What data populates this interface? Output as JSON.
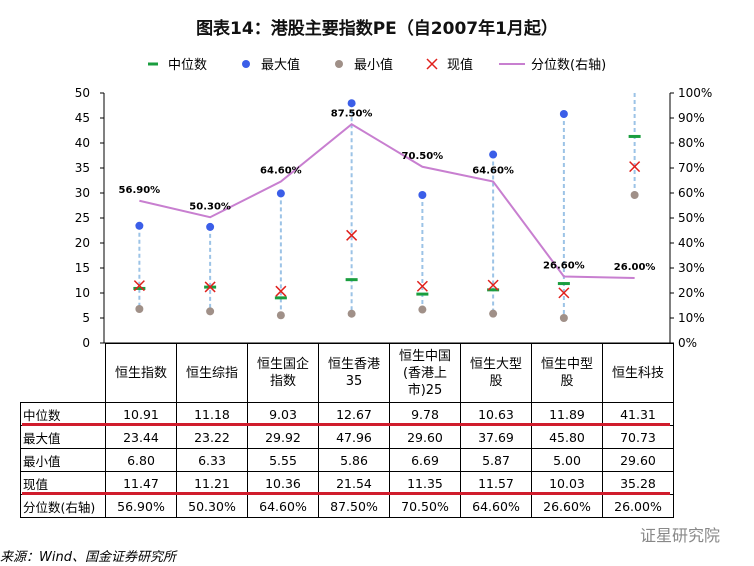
{
  "title": "图表14：港股主要指数PE（自2007年1月起）",
  "source": "来源：Wind、国金证券研究所",
  "watermark": "证星研究院",
  "colors": {
    "median": "#1a9e3f",
    "max": "#3b5ee8",
    "min": "#a09088",
    "current": "#e0201c",
    "percentile": "#c87fd0",
    "whisker": "#9cc3e6",
    "highlight": "#d01c2c"
  },
  "chart_data": {
    "type": "line+scatter",
    "title": "图表14：港股主要指数PE（自2007年1月起）",
    "categories": [
      "恒生指数",
      "恒生综指",
      "恒生国企指数",
      "恒生香港35",
      "恒生中国(香港上市)25",
      "恒生大型股",
      "恒生中型股",
      "恒生科技"
    ],
    "category_lines": [
      [
        "恒生指数"
      ],
      [
        "恒生综指"
      ],
      [
        "恒生国企",
        "指数"
      ],
      [
        "恒生香港",
        "35"
      ],
      [
        "恒生中国",
        "(香港上",
        "市)25"
      ],
      [
        "恒生大型",
        "股"
      ],
      [
        "恒生中型",
        "股"
      ],
      [
        "恒生科技"
      ]
    ],
    "ylim": [
      0,
      50
    ],
    "yticks": [
      "0",
      "5",
      "10",
      "15",
      "20",
      "25",
      "30",
      "35",
      "40",
      "45",
      "50"
    ],
    "y2lim": [
      0,
      100
    ],
    "y2ticks": [
      "0%",
      "10%",
      "20%",
      "30%",
      "40%",
      "50%",
      "60%",
      "70%",
      "80%",
      "90%",
      "100%"
    ],
    "legend_position": "top",
    "series": [
      {
        "name": "中位数",
        "marker": "dash",
        "values": [
          10.91,
          11.18,
          9.03,
          12.67,
          9.78,
          10.63,
          11.89,
          41.31
        ]
      },
      {
        "name": "最大值",
        "marker": "circle",
        "values": [
          23.44,
          23.22,
          29.92,
          47.96,
          29.6,
          37.69,
          45.8,
          70.73
        ]
      },
      {
        "name": "最小值",
        "marker": "circle",
        "values": [
          6.8,
          6.33,
          5.55,
          5.86,
          6.69,
          5.87,
          5.0,
          29.6
        ]
      },
      {
        "name": "现值",
        "marker": "x",
        "values": [
          11.47,
          11.21,
          10.36,
          21.54,
          11.35,
          11.57,
          10.03,
          35.28
        ]
      },
      {
        "name": "分位数(右轴)",
        "marker": "line",
        "axis": "right",
        "values": [
          56.9,
          50.3,
          64.6,
          87.5,
          70.5,
          64.6,
          26.6,
          26.0
        ],
        "labels": [
          "56.90%",
          "50.30%",
          "64.60%",
          "87.50%",
          "70.50%",
          "64.60%",
          "26.60%",
          "26.00%"
        ]
      }
    ],
    "table": {
      "rows": [
        {
          "label": "中位数",
          "cells": [
            "10.91",
            "11.18",
            "9.03",
            "12.67",
            "9.78",
            "10.63",
            "11.89",
            "41.31"
          ]
        },
        {
          "label": "最大值",
          "cells": [
            "23.44",
            "23.22",
            "29.92",
            "47.96",
            "29.60",
            "37.69",
            "45.80",
            "70.73"
          ]
        },
        {
          "label": "最小值",
          "cells": [
            "6.80",
            "6.33",
            "5.55",
            "5.86",
            "6.69",
            "5.87",
            "5.00",
            "29.60"
          ]
        },
        {
          "label": "现值",
          "cells": [
            "11.47",
            "11.21",
            "10.36",
            "21.54",
            "11.35",
            "11.57",
            "10.03",
            "35.28"
          ]
        },
        {
          "label": "分位数(右轴)",
          "cells": [
            "56.90%",
            "50.30%",
            "64.60%",
            "87.50%",
            "70.50%",
            "64.60%",
            "26.60%",
            "26.00%"
          ]
        }
      ]
    }
  }
}
